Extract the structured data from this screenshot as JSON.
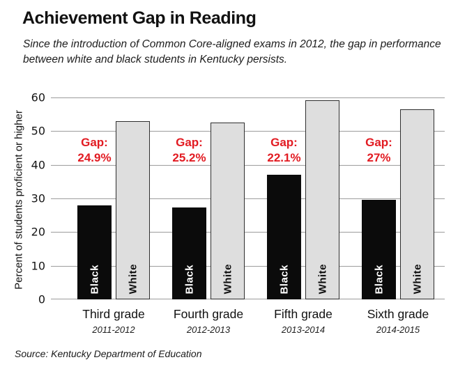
{
  "header": {
    "title": "Achievement Gap in Reading",
    "subtitle_line1": "Since the introduction of Common Core-aligned exams in 2012, the gap in performance",
    "subtitle_line2": "between white and black students in Kentucky persists."
  },
  "source": "Source: Kentucky Department of Education",
  "colors": {
    "accent_red": "#e21b22",
    "bar_black": "#0b0b0b",
    "bar_white_fill": "#dedede",
    "bar_white_border": "#2e2e2e",
    "gridline": "#9c9c9c"
  },
  "chart_data": {
    "type": "bar",
    "title": "Achievement Gap in Reading",
    "xlabel": "",
    "ylabel": "Percent of students proficient or higher",
    "ylim": [
      0,
      60
    ],
    "yticks": [
      0,
      10,
      20,
      30,
      40,
      50,
      60
    ],
    "grid": true,
    "legend_position": "none",
    "categories": [
      "Third grade",
      "Fourth grade",
      "Fifth grade",
      "Sixth grade"
    ],
    "category_sublabels": [
      "2011-2012",
      "2012-2013",
      "2013-2014",
      "2014-2015"
    ],
    "series": [
      {
        "name": "Black",
        "color": "#0b0b0b",
        "label_color": "#ffffff",
        "values": [
          28.0,
          27.3,
          37.0,
          29.5
        ]
      },
      {
        "name": "White",
        "color": "#dedede",
        "label_color": "#111111",
        "values": [
          52.9,
          52.5,
          59.1,
          56.5
        ]
      }
    ],
    "gap_label_prefix": "Gap:",
    "gap_values": [
      "24.9%",
      "25.2%",
      "22.1%",
      "27%"
    ],
    "gap_color": "#e21b22"
  }
}
